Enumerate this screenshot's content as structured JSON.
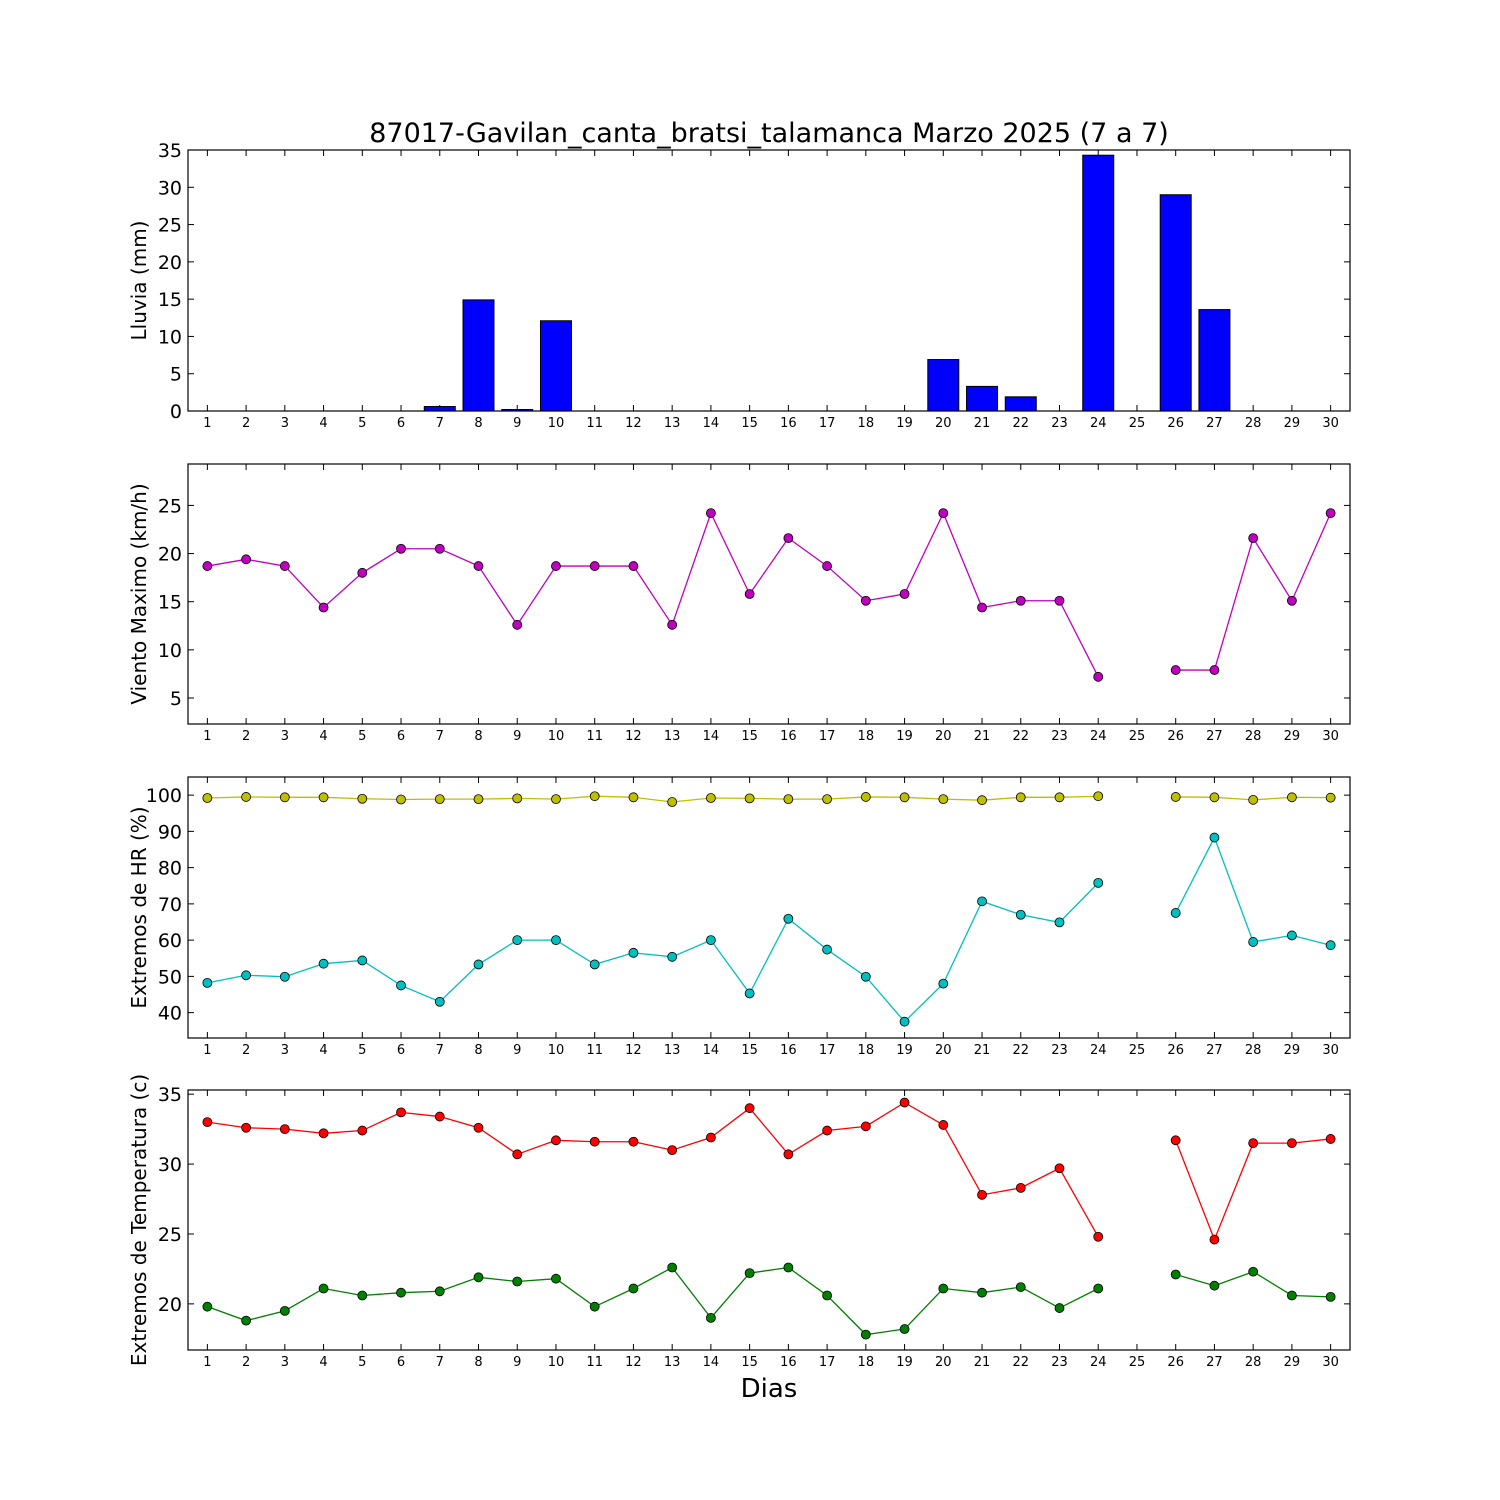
{
  "figure": {
    "title": "87017-Gavilan_canta_bratsi_talamanca Marzo 2025  (7 a 7)",
    "xlabel": "Dias"
  },
  "colors": {
    "rain": "#0000ff",
    "wind": "#bf00bf",
    "hr_max": "#bfbf00",
    "hr_min": "#00bfbf",
    "temp_max": "#ff0000",
    "temp_min": "#007f00"
  },
  "chart_data": [
    {
      "type": "bar",
      "ylabel": "Lluvia (mm)",
      "ylim": [
        0,
        35
      ],
      "yticks": [
        0,
        5,
        10,
        15,
        20,
        25,
        30,
        35
      ],
      "xlim": [
        0.5,
        30.5
      ],
      "categories": [
        1,
        2,
        3,
        4,
        5,
        6,
        7,
        8,
        9,
        10,
        11,
        12,
        13,
        14,
        15,
        16,
        17,
        18,
        19,
        20,
        21,
        22,
        23,
        24,
        25,
        26,
        27,
        28,
        29,
        30
      ],
      "series": [
        {
          "values": [
            0,
            0,
            0,
            0,
            0,
            0,
            0.6,
            14.9,
            0.2,
            12.1,
            0,
            0,
            0,
            0,
            0,
            0,
            0,
            0,
            0,
            6.9,
            3.3,
            1.9,
            0,
            34.3,
            0,
            29.0,
            13.6,
            0,
            0,
            0
          ]
        }
      ]
    },
    {
      "type": "line",
      "ylabel": "Viento Maximo (km/h)",
      "ylim": [
        2.3,
        29.3
      ],
      "yticks": [
        5,
        10,
        15,
        20,
        25
      ],
      "xlim": [
        0.5,
        30.5
      ],
      "categories": [
        1,
        2,
        3,
        4,
        5,
        6,
        7,
        8,
        9,
        10,
        11,
        12,
        13,
        14,
        15,
        16,
        17,
        18,
        19,
        20,
        21,
        22,
        23,
        24,
        25,
        26,
        27,
        28,
        29,
        30
      ],
      "series": [
        {
          "values": [
            18.7,
            19.4,
            18.7,
            14.4,
            18.0,
            20.5,
            20.5,
            18.7,
            12.6,
            18.7,
            18.7,
            18.7,
            12.6,
            24.2,
            15.8,
            21.6,
            18.7,
            15.1,
            15.8,
            24.2,
            14.4,
            15.1,
            15.1,
            7.2,
            null,
            7.9,
            7.9,
            21.6,
            15.1,
            24.2
          ]
        }
      ]
    },
    {
      "type": "line",
      "ylabel": "Extremos de HR (%)",
      "ylim": [
        33,
        105
      ],
      "yticks": [
        40,
        50,
        60,
        70,
        80,
        90,
        100
      ],
      "xlim": [
        0.5,
        30.5
      ],
      "categories": [
        1,
        2,
        3,
        4,
        5,
        6,
        7,
        8,
        9,
        10,
        11,
        12,
        13,
        14,
        15,
        16,
        17,
        18,
        19,
        20,
        21,
        22,
        23,
        24,
        25,
        26,
        27,
        28,
        29,
        30
      ],
      "series": [
        {
          "values": [
            99.2,
            99.5,
            99.4,
            99.4,
            99.0,
            98.8,
            98.9,
            98.9,
            99.1,
            98.9,
            99.7,
            99.4,
            98.1,
            99.2,
            99.1,
            98.9,
            98.9,
            99.5,
            99.4,
            98.9,
            98.6,
            99.4,
            99.4,
            99.7,
            null,
            99.5,
            99.4,
            98.7,
            99.4,
            99.3
          ]
        },
        {
          "values": [
            48.2,
            50.3,
            49.9,
            53.5,
            54.4,
            47.5,
            43.0,
            53.3,
            60.0,
            60.0,
            53.3,
            56.5,
            55.4,
            60.0,
            45.3,
            65.9,
            57.4,
            49.9,
            37.5,
            48.0,
            70.7,
            67.0,
            64.9,
            75.8,
            null,
            67.5,
            88.3,
            59.5,
            61.3,
            58.6
          ]
        }
      ]
    },
    {
      "type": "line",
      "ylabel": "Extremos de Temperatura (c)",
      "ylim": [
        16.7,
        35.3
      ],
      "yticks": [
        20,
        25,
        30,
        35
      ],
      "xlim": [
        0.5,
        30.5
      ],
      "categories": [
        1,
        2,
        3,
        4,
        5,
        6,
        7,
        8,
        9,
        10,
        11,
        12,
        13,
        14,
        15,
        16,
        17,
        18,
        19,
        20,
        21,
        22,
        23,
        24,
        25,
        26,
        27,
        28,
        29,
        30
      ],
      "series": [
        {
          "values": [
            33.0,
            32.6,
            32.5,
            32.2,
            32.4,
            33.7,
            33.4,
            32.6,
            30.7,
            31.7,
            31.6,
            31.6,
            31.0,
            31.9,
            34.0,
            30.7,
            32.4,
            32.7,
            34.4,
            32.8,
            27.8,
            28.3,
            29.7,
            24.8,
            null,
            31.7,
            24.6,
            31.5,
            31.5,
            31.8
          ]
        },
        {
          "values": [
            19.8,
            18.8,
            19.5,
            21.1,
            20.6,
            20.8,
            20.9,
            21.9,
            21.6,
            21.8,
            19.8,
            21.1,
            22.6,
            19.0,
            22.2,
            22.6,
            20.6,
            17.8,
            18.2,
            21.1,
            20.8,
            21.2,
            19.7,
            21.1,
            null,
            22.1,
            21.3,
            22.3,
            20.6,
            20.5
          ]
        }
      ]
    }
  ]
}
